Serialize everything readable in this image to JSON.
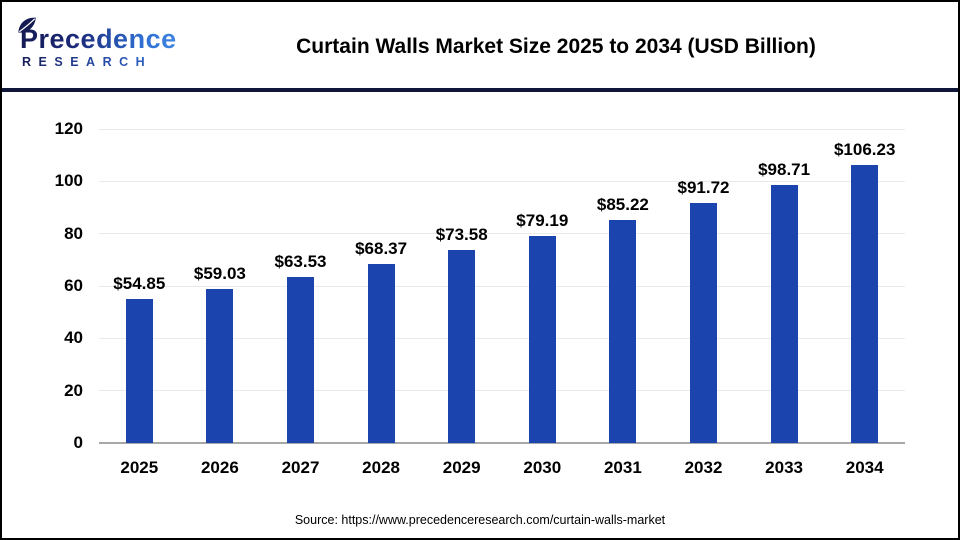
{
  "header": {
    "logo": {
      "line1": "Precedence",
      "line2": "RESEARCH"
    },
    "title": "Curtain Walls Market Size 2025 to 2034 (USD Billion)"
  },
  "chart_data": {
    "type": "bar",
    "title": "Curtain Walls Market Size 2025 to 2034 (USD Billion)",
    "categories": [
      "2025",
      "2026",
      "2027",
      "2028",
      "2029",
      "2030",
      "2031",
      "2032",
      "2033",
      "2034"
    ],
    "values": [
      54.85,
      59.03,
      63.53,
      68.37,
      73.58,
      79.19,
      85.22,
      91.72,
      98.71,
      106.23
    ],
    "value_labels": [
      "$54.85",
      "$59.03",
      "$63.53",
      "$68.37",
      "$73.58",
      "$79.19",
      "$85.22",
      "$91.72",
      "$98.71",
      "$106.23"
    ],
    "xlabel": "",
    "ylabel": "",
    "ylim": [
      0,
      120
    ],
    "yticks": [
      0,
      20,
      40,
      60,
      80,
      100,
      120
    ],
    "grid": true,
    "legend_position": "none",
    "bar_color": "#1b44ae"
  },
  "footer": {
    "source": "Source: https://www.precedenceresearch.com/curtain-walls-market"
  },
  "colors": {
    "bar": "#1b44ae",
    "header_divider": "#10163a",
    "logo_navy": "#161c55",
    "logo_blue": "#2f6fd3",
    "axis_line": "#a8a8a8",
    "gridline": "#eaeaea",
    "text": "#000000",
    "background": "#ffffff"
  }
}
